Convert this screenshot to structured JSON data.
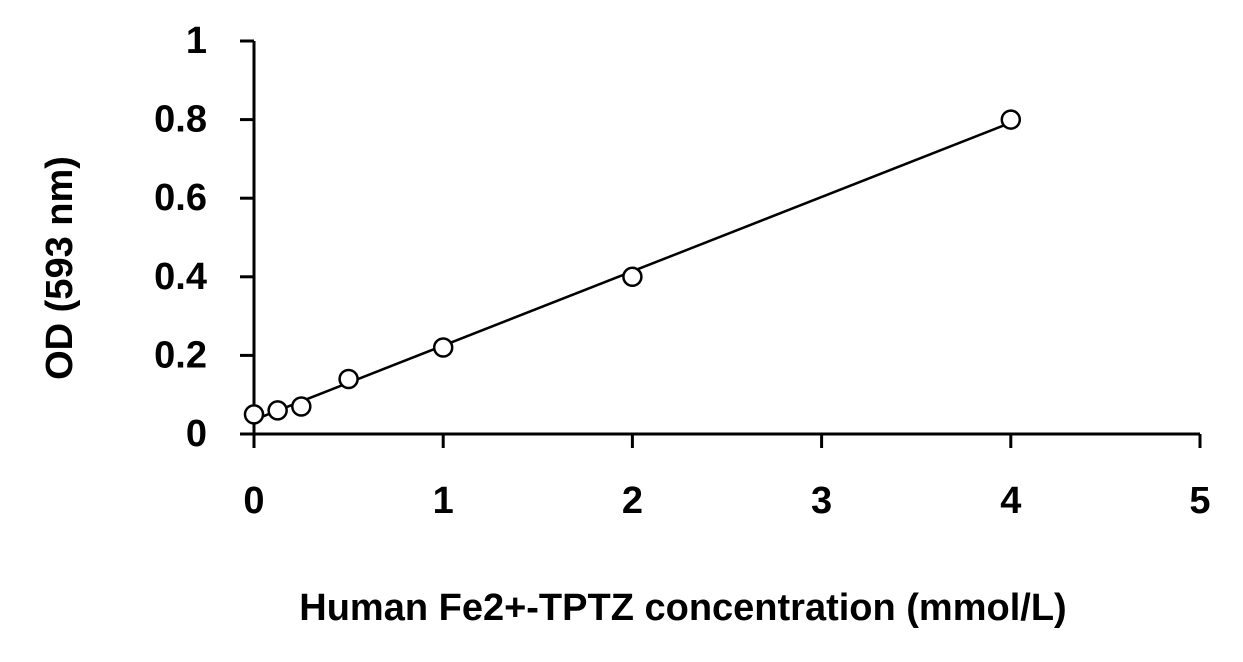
{
  "chart_data": {
    "type": "scatter",
    "title": "",
    "xlabel": "Human Fe2+-TPTZ concentration (mmol/L)",
    "ylabel": "OD (593 nm)",
    "xlim": [
      0,
      5
    ],
    "ylim": [
      0,
      1
    ],
    "xticks": [
      0,
      1,
      2,
      3,
      4,
      5
    ],
    "yticks": [
      0,
      0.2,
      0.4,
      0.6,
      0.8,
      1
    ],
    "xtick_labels": [
      "0",
      "1",
      "2",
      "3",
      "4",
      "5"
    ],
    "ytick_labels": [
      "0",
      "0.2",
      "0.4",
      "0.6",
      "0.8",
      "1"
    ],
    "grid": false,
    "legend": "none",
    "marker": "open-circle",
    "trendline": "linear",
    "series": [
      {
        "x": [
          0,
          0.125,
          0.25,
          0.5,
          1,
          2,
          4
        ],
        "y": [
          0.05,
          0.06,
          0.07,
          0.14,
          0.22,
          0.4,
          0.8
        ]
      }
    ],
    "colors": {
      "axis": "#000000",
      "marker_stroke": "#000000",
      "marker_fill": "#ffffff"
    }
  }
}
